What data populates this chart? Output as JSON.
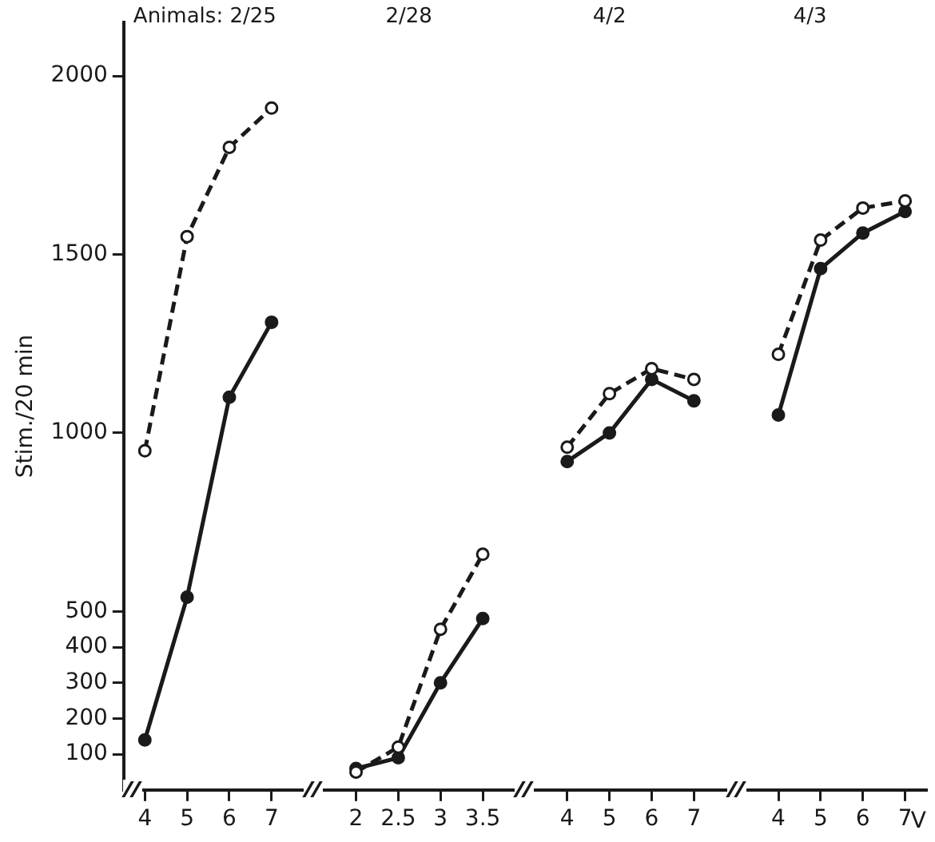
{
  "chart_data": {
    "type": "line",
    "ylabel": "Stim./20 min",
    "xlabel": "V",
    "annotations": [
      "Animals: 2/25",
      "2/28",
      "4/2",
      "4/3"
    ],
    "categories": [
      "4",
      "5",
      "6",
      "7",
      null,
      "2",
      "2.5",
      "3",
      "3.5",
      null,
      "4",
      "5",
      "6",
      "7",
      null,
      "4",
      "5",
      "6",
      "7"
    ],
    "series": [
      {
        "color": "#1a1a1a",
        "line_style": "dashed",
        "values": [
          950,
          1550,
          1800,
          1910,
          null,
          50,
          120,
          450,
          660,
          null,
          960,
          1110,
          1180,
          1150,
          null,
          1220,
          1540,
          1630,
          1650
        ]
      },
      {
        "color": "#1a1a1a",
        "line_style": "solid",
        "values": [
          140,
          540,
          1100,
          1310,
          null,
          60,
          90,
          300,
          480,
          null,
          920,
          1000,
          1150,
          1090,
          null,
          1050,
          1460,
          1560,
          1620
        ]
      }
    ],
    "ylim": [
      0,
      2150
    ],
    "yticks": [
      100,
      200,
      300,
      400,
      500,
      1000,
      1500,
      2000
    ],
    "grid": false,
    "legend": false,
    "marker": "circle"
  }
}
